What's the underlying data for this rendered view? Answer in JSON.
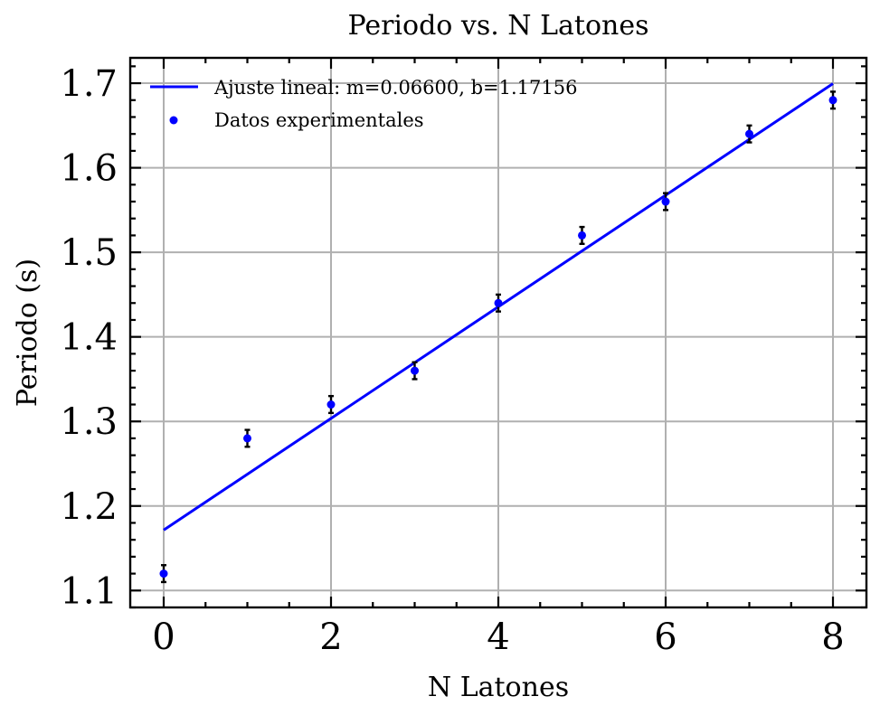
{
  "chart_data": {
    "type": "scatter",
    "title": "Periodo vs. N Latones",
    "xlabel": "N Latones",
    "ylabel": "Periodo (s)",
    "xlim": [
      -0.4,
      8.4
    ],
    "ylim": [
      1.08,
      1.73
    ],
    "xticks": [
      0,
      2,
      4,
      6,
      8
    ],
    "xtick_labels": [
      "0",
      "2",
      "4",
      "6",
      "8"
    ],
    "yticks": [
      1.1,
      1.2,
      1.3,
      1.4,
      1.5,
      1.6,
      1.7
    ],
    "ytick_labels": [
      "1.1",
      "1.2",
      "1.3",
      "1.4",
      "1.5",
      "1.6",
      "1.7"
    ],
    "grid": true,
    "legend_position": "top-left",
    "series": [
      {
        "name": "Datos experimentales",
        "kind": "scatter-errorbar",
        "color": "#0000ff",
        "errorbar_color": "#000000",
        "x": [
          0,
          1,
          2,
          3,
          4,
          5,
          6,
          7,
          8
        ],
        "y": [
          1.12,
          1.28,
          1.32,
          1.36,
          1.44,
          1.52,
          1.56,
          1.64,
          1.68
        ],
        "yerr": [
          0.01,
          0.01,
          0.01,
          0.01,
          0.01,
          0.01,
          0.01,
          0.01,
          0.01
        ]
      },
      {
        "name": "Ajuste lineal: m=0.06600, b=1.17156",
        "kind": "line",
        "color": "#0000ff",
        "slope": 0.066,
        "intercept": 1.17156,
        "x": [
          0,
          8
        ]
      }
    ]
  }
}
